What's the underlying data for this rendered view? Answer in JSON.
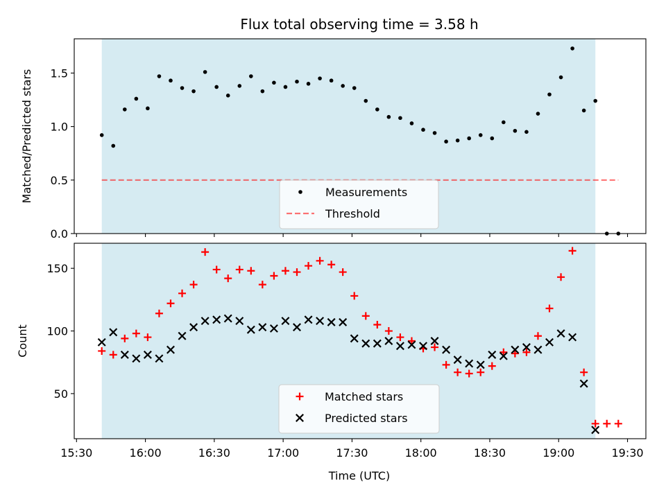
{
  "chart_data": {
    "title": "Flux total observing time = 3.58 h",
    "xlabel": "Time (UTC)",
    "x_tick_labels": [
      "15:30",
      "16:00",
      "16:30",
      "17:00",
      "17:30",
      "18:00",
      "18:30",
      "19:00",
      "19:30"
    ],
    "x_tick_minutes": [
      930,
      960,
      990,
      1020,
      1050,
      1080,
      1110,
      1140,
      1170
    ],
    "xlim_minutes": [
      929,
      1178
    ],
    "shaded_interval_minutes": [
      941,
      1156
    ],
    "shade_color": "#add8e6",
    "panels": [
      {
        "type": "scatter",
        "ylabel": "Matched/Predicted stars",
        "ylim": [
          0,
          1.82
        ],
        "y_tick_labels": [
          "0.0",
          "0.5",
          "1.0",
          "1.5"
        ],
        "y_ticks": [
          0,
          0.5,
          1.0,
          1.5
        ],
        "threshold": {
          "name": "Threshold",
          "value": 0.5,
          "x_minutes": [
            941,
            1166
          ],
          "color": "#ff0000"
        },
        "series": [
          {
            "name": "Measurements",
            "color": "#000000",
            "marker": "dot",
            "x_minutes": [
              941,
              946,
              951,
              956,
              961,
              966,
              971,
              976,
              981,
              986,
              991,
              996,
              1001,
              1006,
              1011,
              1016,
              1021,
              1026,
              1031,
              1036,
              1041,
              1046,
              1051,
              1056,
              1061,
              1066,
              1071,
              1076,
              1081,
              1086,
              1091,
              1096,
              1101,
              1106,
              1111,
              1116,
              1121,
              1126,
              1131,
              1136,
              1141,
              1146,
              1151,
              1156,
              1161,
              1166
            ],
            "values": [
              0.92,
              0.82,
              1.16,
              1.26,
              1.17,
              1.47,
              1.43,
              1.36,
              1.33,
              1.51,
              1.37,
              1.29,
              1.38,
              1.47,
              1.33,
              1.41,
              1.37,
              1.42,
              1.4,
              1.45,
              1.43,
              1.38,
              1.36,
              1.24,
              1.16,
              1.09,
              1.08,
              1.03,
              0.97,
              0.94,
              0.86,
              0.87,
              0.89,
              0.92,
              0.89,
              1.04,
              0.96,
              0.95,
              1.12,
              1.3,
              1.46,
              1.73,
              1.15,
              1.24,
              0.0,
              0.0
            ]
          }
        ],
        "legend": [
          "Measurements",
          "Threshold"
        ]
      },
      {
        "type": "scatter",
        "ylabel": "Count",
        "ylim": [
          14,
          170
        ],
        "y_tick_labels": [
          "50",
          "100",
          "150"
        ],
        "y_ticks": [
          50,
          100,
          150
        ],
        "series": [
          {
            "name": "Matched stars",
            "color": "#ff0000",
            "marker": "plus",
            "x_minutes": [
              941,
              946,
              951,
              956,
              961,
              966,
              971,
              976,
              981,
              986,
              991,
              996,
              1001,
              1006,
              1011,
              1016,
              1021,
              1026,
              1031,
              1036,
              1041,
              1046,
              1051,
              1056,
              1061,
              1066,
              1071,
              1076,
              1081,
              1086,
              1091,
              1096,
              1101,
              1106,
              1111,
              1116,
              1121,
              1126,
              1131,
              1136,
              1141,
              1146,
              1151,
              1156,
              1161,
              1166
            ],
            "values": [
              84,
              81,
              94,
              98,
              95,
              114,
              122,
              130,
              137,
              163,
              149,
              142,
              149,
              148,
              137,
              144,
              148,
              147,
              152,
              156,
              153,
              147,
              128,
              112,
              105,
              100,
              95,
              92,
              86,
              87,
              73,
              67,
              66,
              67,
              72,
              83,
              82,
              83,
              96,
              118,
              143,
              164,
              67,
              26,
              26,
              26
            ]
          },
          {
            "name": "Predicted stars",
            "color": "#000000",
            "marker": "x",
            "x_minutes": [
              941,
              946,
              951,
              956,
              961,
              966,
              971,
              976,
              981,
              986,
              991,
              996,
              1001,
              1006,
              1011,
              1016,
              1021,
              1026,
              1031,
              1036,
              1041,
              1046,
              1051,
              1056,
              1061,
              1066,
              1071,
              1076,
              1081,
              1086,
              1091,
              1096,
              1101,
              1106,
              1111,
              1116,
              1121,
              1126,
              1131,
              1136,
              1141,
              1146,
              1151,
              1156
            ],
            "values": [
              91,
              99,
              81,
              78,
              81,
              78,
              85,
              96,
              103,
              108,
              109,
              110,
              108,
              101,
              103,
              102,
              108,
              103,
              109,
              108,
              107,
              107,
              94,
              90,
              90,
              92,
              88,
              89,
              88,
              92,
              85,
              77,
              74,
              73,
              81,
              80,
              85,
              87,
              85,
              91,
              98,
              95,
              58,
              21
            ]
          }
        ],
        "legend": [
          "Matched stars",
          "Predicted stars"
        ]
      }
    ]
  }
}
